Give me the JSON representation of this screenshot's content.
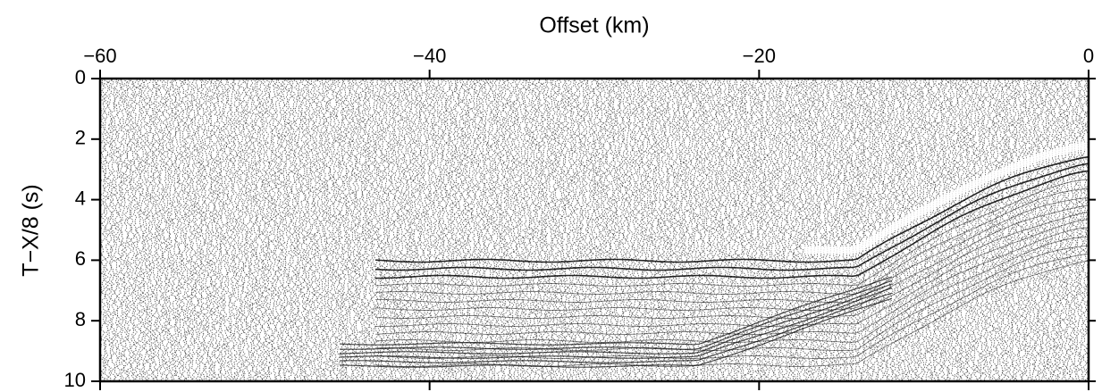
{
  "chart_data": {
    "type": "record-section",
    "xlabel": "Offset (km)",
    "ylabel": "T−X/8 (s)",
    "xlim": [
      -60,
      0
    ],
    "ylim": [
      0,
      10
    ],
    "y_inverted": true,
    "x_axis_position": "top",
    "xticks": [
      {
        "value": -60,
        "label": "−60"
      },
      {
        "value": -40,
        "label": "−40"
      },
      {
        "value": -20,
        "label": "−20"
      },
      0
    ],
    "yticks": [
      0,
      2,
      4,
      6,
      8,
      10
    ],
    "color": "#000000"
  }
}
